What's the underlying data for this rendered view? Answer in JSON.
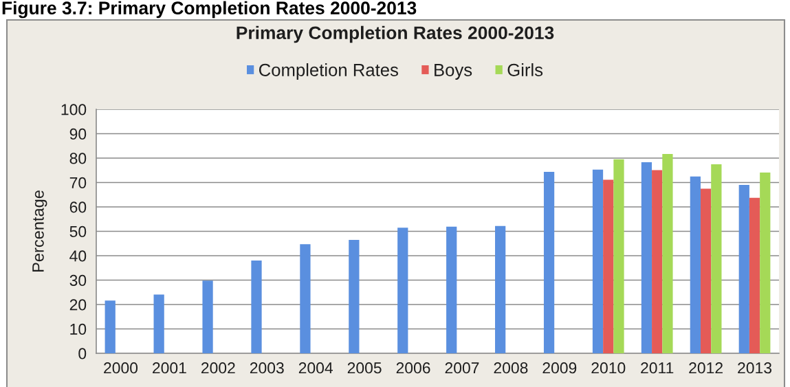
{
  "chart_data": {
    "type": "bar",
    "title": "Primary Completion Rates 2000-2013",
    "ylabel": "Percentage",
    "annotations": [
      "Figure 3.7: Primary Completion Rates 2000-2013"
    ],
    "categories": [
      "2000",
      "2001",
      "2002",
      "2003",
      "2004",
      "2005",
      "2006",
      "2007",
      "2008",
      "2009",
      "2010",
      "2011",
      "2012",
      "2013"
    ],
    "series": [
      {
        "name": "Completion Rates",
        "color": "#5a8fdf",
        "values": [
          21.6,
          24.1,
          29.8,
          38.0,
          44.7,
          46.5,
          51.5,
          51.9,
          52.2,
          74.4,
          75.3,
          78.3,
          72.5,
          69.0
        ]
      },
      {
        "name": "Boys",
        "color": "#e45b57",
        "values": [
          null,
          null,
          null,
          null,
          null,
          null,
          null,
          null,
          null,
          null,
          71.1,
          75.1,
          67.5,
          63.7
        ]
      },
      {
        "name": "Girls",
        "color": "#a5d957",
        "values": [
          null,
          null,
          null,
          null,
          null,
          null,
          null,
          null,
          null,
          null,
          79.5,
          81.7,
          77.5,
          74.1
        ]
      }
    ],
    "ylim": [
      0,
      100
    ],
    "yticks": [
      0,
      10,
      20,
      30,
      40,
      50,
      60,
      70,
      80,
      90,
      100
    ],
    "grid": "y",
    "legend": "top"
  }
}
